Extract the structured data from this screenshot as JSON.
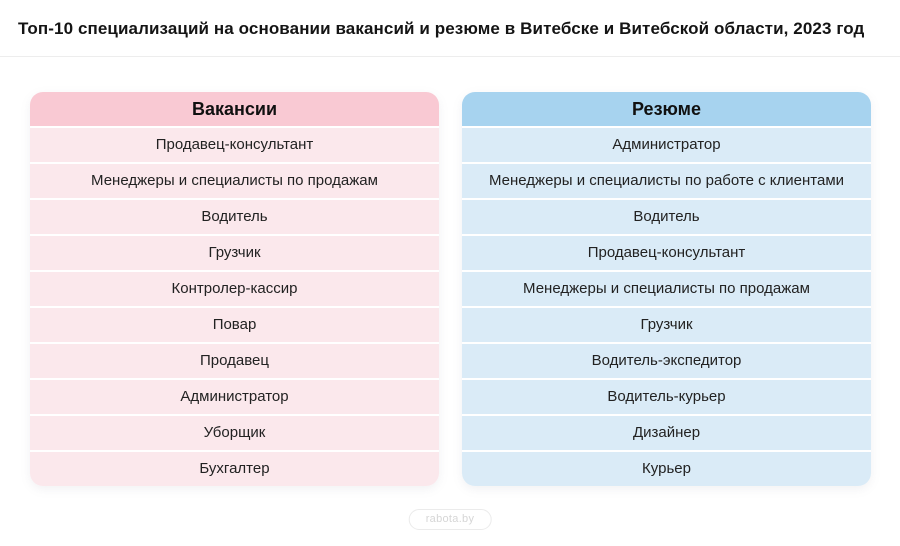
{
  "title": "Топ-10 специализаций на основании вакансий и резюме в Витебске и Витебской области, 2023 год",
  "watermark": "rabota.by",
  "columns": [
    {
      "header": "Вакансии",
      "header_bg": "#f9c9d3",
      "row_bg": "#fbe8ec",
      "items": [
        "Продавец-консультант",
        "Менеджеры и специалисты по продажам",
        "Водитель",
        "Грузчик",
        "Контролер-кассир",
        "Повар",
        "Продавец",
        "Администратор",
        "Уборщик",
        "Бухгалтер"
      ]
    },
    {
      "header": "Резюме",
      "header_bg": "#a7d3ef",
      "row_bg": "#daebf7",
      "items": [
        "Администратор",
        "Менеджеры и специалисты по работе с клиентами",
        "Водитель",
        "Продавец-консультант",
        "Менеджеры и специалисты по продажам",
        "Грузчик",
        "Водитель-экспедитор",
        "Водитель-курьер",
        "Дизайнер",
        "Курьер"
      ]
    }
  ],
  "chart_data": {
    "type": "table",
    "title": "Топ-10 специализаций на основании вакансий и резюме в Витебске и Витебской области, 2023 год",
    "columns": [
      "Вакансии",
      "Резюме"
    ],
    "rows": [
      [
        "Продавец-консультант",
        "Администратор"
      ],
      [
        "Менеджеры и специалисты по продажам",
        "Менеджеры и специалисты по работе с клиентами"
      ],
      [
        "Водитель",
        "Водитель"
      ],
      [
        "Грузчик",
        "Продавец-консультант"
      ],
      [
        "Контролер-кассир",
        "Менеджеры и специалисты по продажам"
      ],
      [
        "Повар",
        "Грузчик"
      ],
      [
        "Продавец",
        "Водитель-экспедитор"
      ],
      [
        "Администратор",
        "Водитель-курьер"
      ],
      [
        "Уборщик",
        "Дизайнер"
      ],
      [
        "Бухгалтер",
        "Курьер"
      ]
    ],
    "legend_position": "none",
    "grid": false
  }
}
